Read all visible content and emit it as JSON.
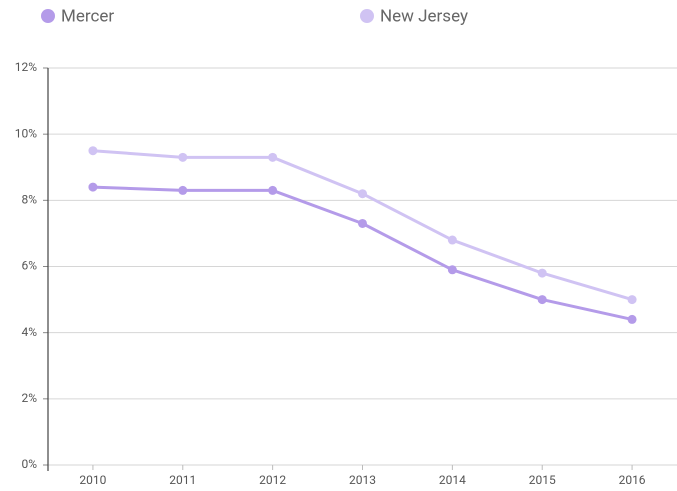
{
  "chart_data": {
    "type": "line",
    "categories": [
      "2010",
      "2011",
      "2012",
      "2013",
      "2014",
      "2015",
      "2016"
    ],
    "series": [
      {
        "name": "Mercer",
        "color": "#b49be9",
        "values": [
          8.4,
          8.3,
          8.3,
          7.3,
          5.9,
          5.0,
          4.4
        ]
      },
      {
        "name": "New Jersey",
        "color": "#d0c3f3",
        "values": [
          9.5,
          9.3,
          9.3,
          8.2,
          6.8,
          5.8,
          5.0
        ]
      }
    ],
    "ylim": [
      0,
      12
    ],
    "yticks": [
      {
        "value": 0,
        "label": "0%"
      },
      {
        "value": 2,
        "label": "2%"
      },
      {
        "value": 4,
        "label": "4%"
      },
      {
        "value": 6,
        "label": "6%"
      },
      {
        "value": 8,
        "label": "8%"
      },
      {
        "value": 10,
        "label": "10%"
      },
      {
        "value": 12,
        "label": "12%"
      }
    ],
    "grid": true
  }
}
